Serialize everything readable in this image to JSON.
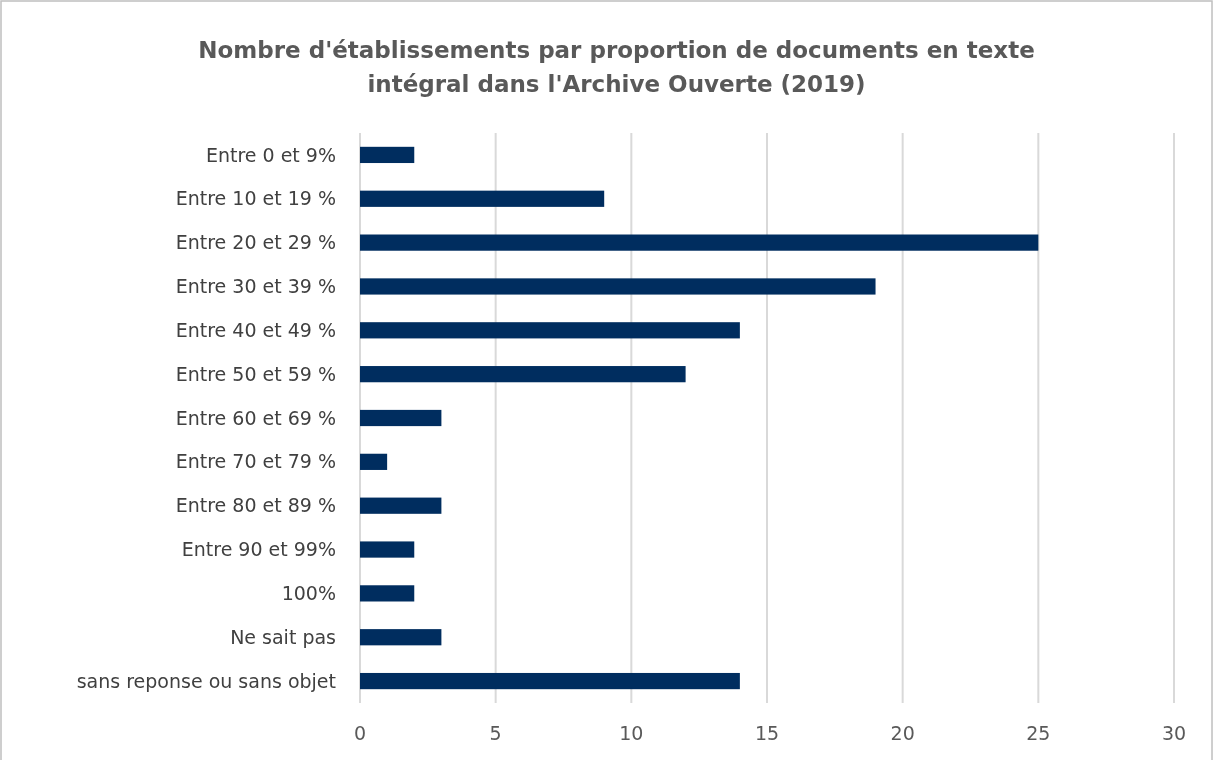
{
  "chart_data": {
    "type": "bar",
    "orientation": "horizontal",
    "title": "Nombre d'établissements par proportion de documents en texte intégral dans l'Archive Ouverte (2019)",
    "categories": [
      "Entre 0 et 9%",
      "Entre 10 et 19 %",
      "Entre 20 et 29 %",
      "Entre 30 et 39 %",
      "Entre 40 et 49 %",
      "Entre 50 et 59 %",
      "Entre 60 et 69 %",
      "Entre 70 et 79 %",
      "Entre 80 et 89 %",
      "Entre 90 et 99%",
      "100%",
      "Ne sait pas",
      "sans reponse ou sans objet"
    ],
    "values": [
      2,
      9,
      25,
      19,
      14,
      12,
      3,
      1,
      3,
      2,
      2,
      3,
      14
    ],
    "color": "#002d5f",
    "xlim": [
      0,
      30
    ],
    "xticks": [
      0,
      5,
      10,
      15,
      20,
      25,
      30
    ],
    "grid": "x"
  }
}
